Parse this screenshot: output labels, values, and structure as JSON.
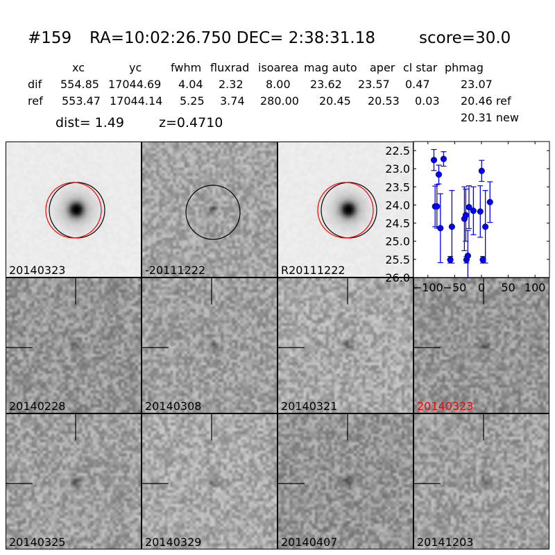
{
  "header": {
    "id": "#159",
    "coords": "RA=10:02:26.750 DEC= 2:38:31.18",
    "score": "score=30.0"
  },
  "table": {
    "columns": [
      "xc",
      "yc",
      "fwhm",
      "fluxrad",
      "isoarea",
      "mag auto",
      "aper",
      "cl star",
      "phmag"
    ],
    "rows": [
      {
        "label": "dif",
        "values": [
          "554.85",
          "17044.69",
          "4.04",
          "2.32",
          "8.00",
          "23.62",
          "23.57",
          "0.47",
          "23.07"
        ]
      },
      {
        "label": "ref",
        "values": [
          "553.47",
          "17044.14",
          "5.25",
          "3.74",
          "280.00",
          "20.45",
          "20.53",
          "0.03",
          "20.46 ref"
        ]
      }
    ],
    "extra_phmag": "20.31 new",
    "dist": "dist=  1.49",
    "z": "z=0.4710"
  },
  "panels": [
    {
      "label": "20140323",
      "type": "new"
    },
    {
      "label": "-20111222",
      "type": "diff"
    },
    {
      "label": "R20111222",
      "type": "ref"
    },
    {
      "label": "20140228",
      "type": "epoch"
    },
    {
      "label": "20140308",
      "type": "epoch"
    },
    {
      "label": "20140321",
      "type": "epoch"
    },
    {
      "label": "20140323",
      "type": "epoch",
      "highlight_color": "#ff0000"
    },
    {
      "label": "20140325",
      "type": "epoch"
    },
    {
      "label": "20140329",
      "type": "epoch"
    },
    {
      "label": "20140407",
      "type": "epoch"
    },
    {
      "label": "20141203",
      "type": "epoch"
    }
  ],
  "colors": {
    "marker": "#0000ff",
    "circle_new": "#000000",
    "circle_ref": "#ff0000",
    "highlight": "#ff0000"
  },
  "chart_data": {
    "type": "scatter",
    "error_bars": true,
    "xlim": [
      -127,
      127
    ],
    "ylim": [
      26.0,
      22.25
    ],
    "y_inverted": true,
    "xticks": [
      -100,
      -50,
      0,
      50,
      100
    ],
    "yticks": [
      22.5,
      23.0,
      23.5,
      24.0,
      24.5,
      25.0,
      25.5,
      26.0
    ],
    "xtick_labels": [
      "−100",
      "−50",
      "0",
      "50",
      "100"
    ],
    "ytick_labels": [
      "22.5",
      "23.0",
      "23.5",
      "24.0",
      "24.5",
      "25.0",
      "25.5",
      "26.0"
    ],
    "points": [
      {
        "x": -88.8,
        "y": 22.76,
        "err": 0.29
      },
      {
        "x": -70.7,
        "y": 22.73,
        "err": 0.2
      },
      {
        "x": -79.7,
        "y": 23.16,
        "err": 0.26
      },
      {
        "x": -86.6,
        "y": 24.04,
        "err": 0.56
      },
      {
        "x": -83.2,
        "y": 24.04,
        "err": 0.6
      },
      {
        "x": -76.7,
        "y": 24.64,
        "err": 0.95
      },
      {
        "x": -58.2,
        "y": 25.51,
        "err": 0.09
      },
      {
        "x": -55.2,
        "y": 24.6,
        "err": 1.0
      },
      {
        "x": -31.9,
        "y": 24.38,
        "err": 0.88
      },
      {
        "x": -29.3,
        "y": 24.28,
        "err": 0.72
      },
      {
        "x": -28.0,
        "y": 25.51,
        "err": 0.09
      },
      {
        "x": -25.4,
        "y": 25.4,
        "err": 0.7
      },
      {
        "x": -23.3,
        "y": 24.06,
        "err": 0.59
      },
      {
        "x": -15.1,
        "y": 24.16,
        "err": 0.66
      },
      {
        "x": -2.2,
        "y": 24.18,
        "err": 0.71
      },
      {
        "x": 0.4,
        "y": 23.06,
        "err": 0.29
      },
      {
        "x": 2.6,
        "y": 25.51,
        "err": 0.09
      },
      {
        "x": 7.3,
        "y": 24.6,
        "err": 1.0
      },
      {
        "x": 15.9,
        "y": 23.92,
        "err": 0.56
      }
    ]
  }
}
